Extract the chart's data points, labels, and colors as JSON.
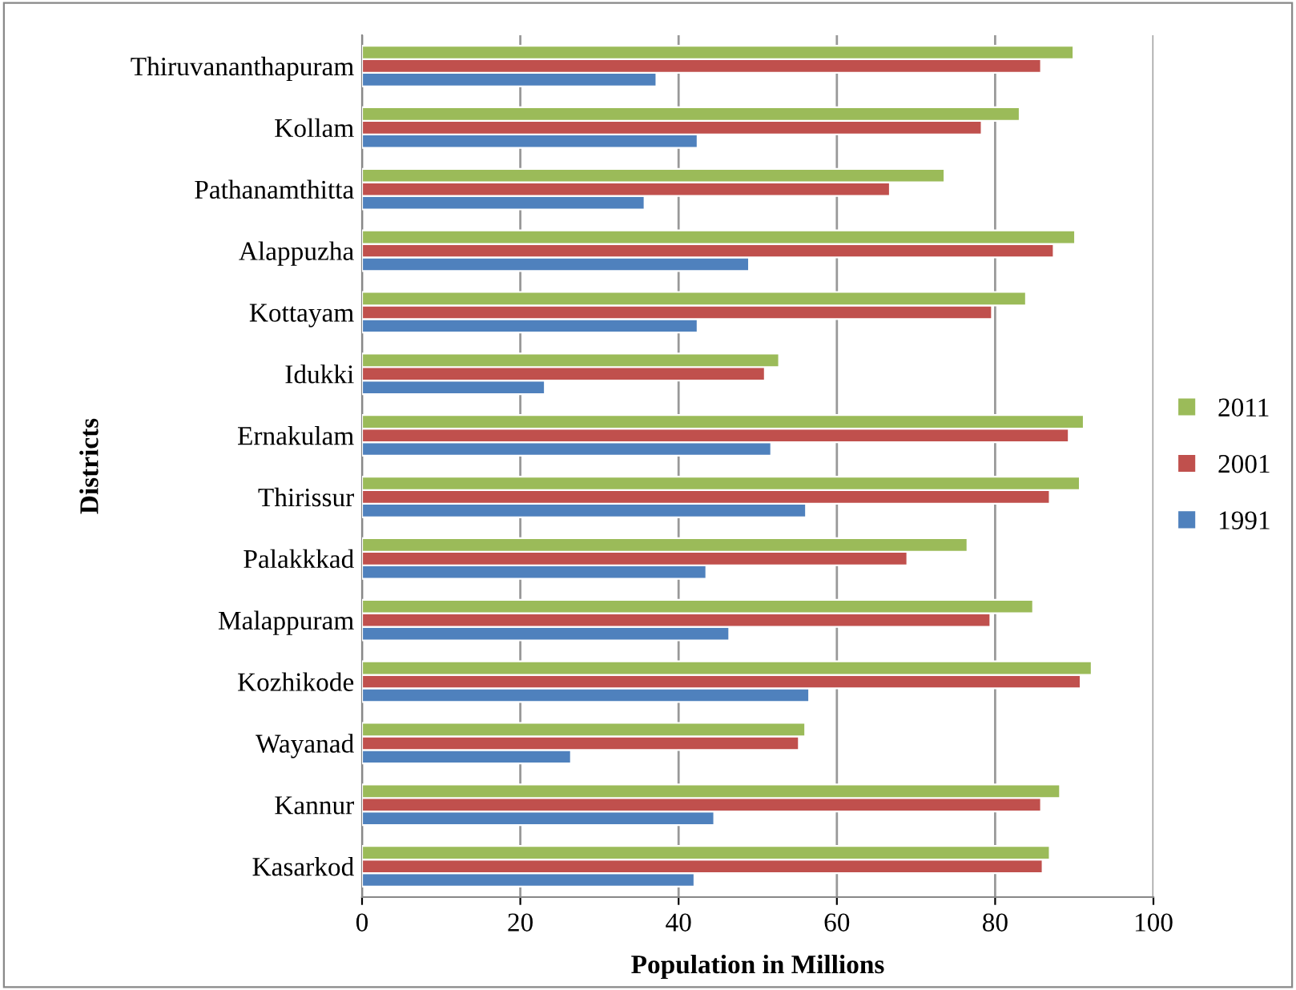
{
  "chart_data": {
    "type": "bar",
    "orientation": "horizontal",
    "xlabel": "Population in Millions",
    "ylabel": "Districts",
    "categories": [
      "Thiruvananthapuram",
      "Kollam",
      "Pathanamthitta",
      "Alappuzha",
      "Kottayam",
      "Idukki",
      "Ernakulam",
      "Thirissur",
      "Palakkkad",
      "Malappuram",
      "Kozhikode",
      "Wayanad",
      "Kannur",
      "Kasarkod"
    ],
    "series": [
      {
        "name": "1991",
        "color": "#4f81bd",
        "values": [
          37.2,
          42.4,
          35.7,
          48.9,
          42.4,
          23.1,
          51.7,
          56.1,
          43.5,
          46.4,
          56.5,
          26.4,
          44.5,
          42.0
        ]
      },
      {
        "name": "2001",
        "color": "#c0504d",
        "values": [
          85.8,
          78.3,
          66.7,
          87.4,
          79.6,
          50.9,
          89.3,
          86.9,
          68.9,
          79.4,
          90.8,
          55.2,
          85.8,
          86.0
        ]
      },
      {
        "name": "2011",
        "color": "#9bbb59",
        "values": [
          89.9,
          83.1,
          73.6,
          90.1,
          83.9,
          52.7,
          91.2,
          90.7,
          76.5,
          84.8,
          92.2,
          56.0,
          88.2,
          86.9
        ]
      }
    ],
    "xlim": [
      0,
      100
    ],
    "xticks": [
      0,
      20,
      40,
      60,
      80,
      100
    ],
    "grid": "x",
    "legend": "right"
  }
}
